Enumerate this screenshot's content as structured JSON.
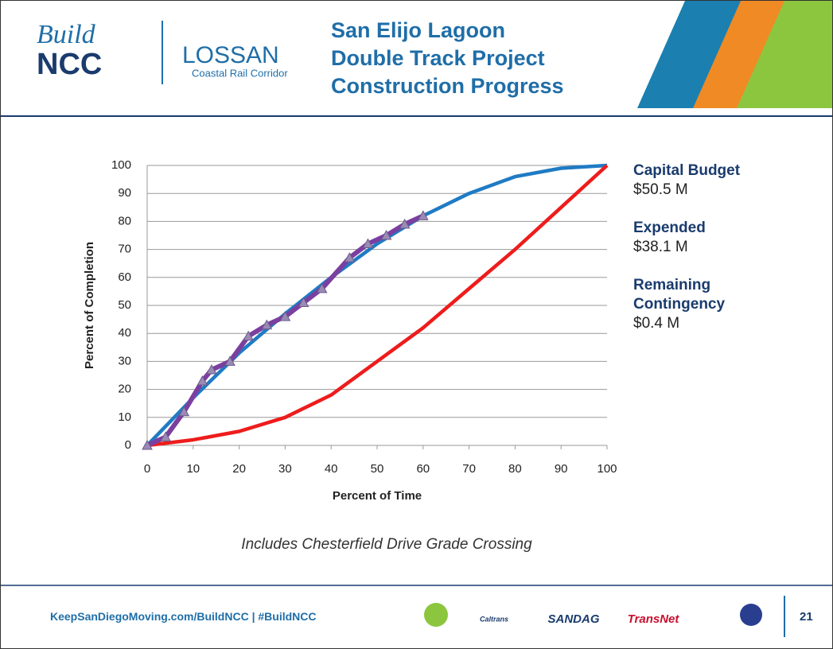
{
  "header": {
    "logo_script": "Build",
    "logo_bold": "NCC",
    "lossan": "LOSSAN",
    "lossan_sub": "Coastal Rail Corridor",
    "title_lines": [
      "San Elijo Lagoon",
      "Double Track Project",
      "Construction Progress"
    ]
  },
  "chart_data": {
    "type": "line",
    "xlabel": "Percent of Time",
    "ylabel": "Percent of Completion",
    "xlim": [
      0,
      100
    ],
    "xticks": [
      0,
      10,
      20,
      30,
      40,
      50,
      60,
      70,
      80,
      90,
      100
    ],
    "ylim": [
      0,
      100
    ],
    "yticks": [
      0,
      10,
      20,
      30,
      40,
      50,
      60,
      70,
      80,
      90,
      100
    ],
    "grid": true,
    "series": [
      {
        "color": "#1f7bc4",
        "x": [
          0,
          10,
          20,
          30,
          40,
          50,
          60,
          70,
          80,
          90,
          100
        ],
        "values": [
          0,
          17,
          33,
          47,
          60,
          72,
          82,
          90,
          96,
          99,
          100
        ]
      },
      {
        "color": "#ee1c1c",
        "x": [
          0,
          10,
          20,
          30,
          40,
          50,
          60,
          70,
          80,
          90,
          100
        ],
        "values": [
          0,
          2,
          5,
          10,
          18,
          30,
          42,
          56,
          70,
          85,
          100
        ]
      },
      {
        "color": "#7b3fa0",
        "marker": "triangle",
        "x": [
          0,
          4,
          8,
          12,
          14,
          18,
          22,
          26,
          30,
          34,
          38,
          44,
          48,
          52,
          56,
          60
        ],
        "values": [
          0,
          3,
          12,
          23,
          27,
          30,
          39,
          43,
          46,
          51,
          56,
          67,
          72,
          75,
          79,
          82
        ]
      }
    ]
  },
  "sidebar": [
    {
      "label": "Capital Budget",
      "value": "$50.5 M"
    },
    {
      "label": "Expended",
      "value": "$38.1 M"
    },
    {
      "label": "Remaining Contingency",
      "value": "$0.4 M"
    }
  ],
  "note": "Includes Chesterfield Drive Grade Crossing",
  "footer": {
    "link": "KeepSanDiegoMoving.com/BuildNCC | #BuildNCC",
    "logos": [
      "Caltrans",
      "SANDAG",
      "TransNet"
    ],
    "page": "21"
  }
}
